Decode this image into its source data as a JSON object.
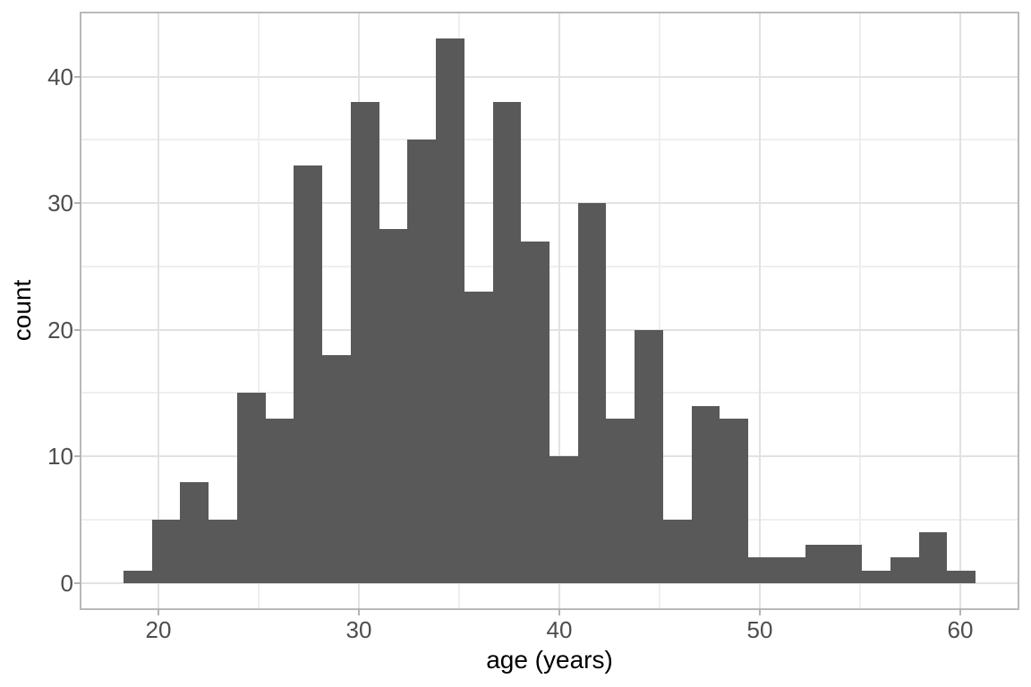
{
  "chart_data": {
    "type": "bar",
    "subtype": "histogram",
    "title": "",
    "xlabel": "age (years)",
    "ylabel": "count",
    "bin_start": 18.26,
    "bin_width": 1.4167,
    "counts": [
      1,
      5,
      8,
      5,
      15,
      13,
      33,
      18,
      38,
      28,
      35,
      43,
      23,
      38,
      27,
      10,
      30,
      13,
      20,
      5,
      14,
      13,
      2,
      2,
      3,
      3,
      1,
      2,
      4,
      1
    ],
    "x_ticks": [
      20,
      30,
      40,
      50,
      60
    ],
    "x_minor_ticks": [
      25,
      35,
      45,
      55
    ],
    "y_ticks": [
      0,
      10,
      20,
      30,
      40
    ],
    "y_minor_ticks": [
      5,
      15,
      25,
      35
    ],
    "xlim": [
      16.16,
      62.86
    ],
    "ylim": [
      -2,
      45
    ],
    "grid": "on",
    "legend": "none"
  },
  "colors": {
    "background": "#ffffff",
    "bar_fill": "#595959",
    "grid_major": "#e2e2e2",
    "grid_minor": "#efefef",
    "panel_border": "#b9b9b9",
    "axis_tick": "#b3b3b3",
    "tick_label_text": "#4d4d4d",
    "axis_title_text": "#000000"
  }
}
